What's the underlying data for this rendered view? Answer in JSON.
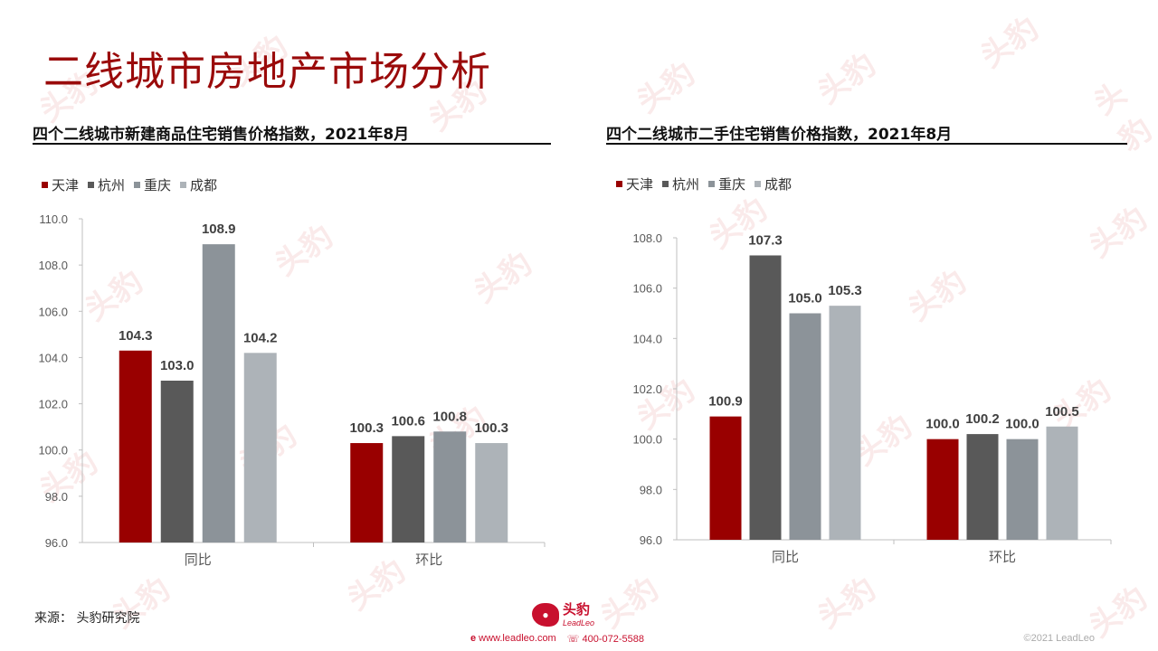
{
  "page": {
    "title": "二线城市房地产市场分析",
    "source": "来源：  头豹研究院",
    "logo_text": "头豹",
    "logo_sub": "LeadLeo",
    "website": "www.leadleo.com",
    "phone": "400-072-5588",
    "copyright": "©2021 LeadLeo",
    "watermark_text": "头豹"
  },
  "colors": {
    "天津": "#990000",
    "杭州": "#595959",
    "重庆": "#8c9399",
    "成都": "#adb3b8"
  },
  "legend": [
    "天津",
    "杭州",
    "重庆",
    "成都"
  ],
  "chart_data": [
    {
      "type": "bar",
      "title": "四个二线城市新建商品住宅销售价格指数，2021年8月",
      "categories": [
        "同比",
        "环比"
      ],
      "ylim": [
        96.0,
        110.0
      ],
      "yticks": [
        "96.0",
        "98.0",
        "100.0",
        "102.0",
        "104.0",
        "106.0",
        "108.0",
        "110.0"
      ],
      "legend_position": "top-left",
      "grid": false,
      "series": [
        {
          "name": "天津",
          "values": [
            104.3,
            100.3
          ],
          "labels": [
            "104.3",
            "100.3"
          ]
        },
        {
          "name": "杭州",
          "values": [
            103.0,
            100.6
          ],
          "labels": [
            "103.0",
            "100.6"
          ]
        },
        {
          "name": "重庆",
          "values": [
            108.9,
            100.8
          ],
          "labels": [
            "108.9",
            "100.8"
          ]
        },
        {
          "name": "成都",
          "values": [
            104.2,
            100.3
          ],
          "labels": [
            "104.2",
            "100.3"
          ]
        }
      ]
    },
    {
      "type": "bar",
      "title": "四个二线城市二手住宅销售价格指数，2021年8月",
      "categories": [
        "同比",
        "环比"
      ],
      "ylim": [
        96.0,
        108.0
      ],
      "yticks": [
        "96.0",
        "98.0",
        "100.0",
        "102.0",
        "104.0",
        "106.0",
        "108.0"
      ],
      "legend_position": "top-left",
      "grid": false,
      "series": [
        {
          "name": "天津",
          "values": [
            100.9,
            100.0
          ],
          "labels": [
            "100.9",
            "100.0"
          ]
        },
        {
          "name": "杭州",
          "values": [
            107.3,
            100.2
          ],
          "labels": [
            "107.3",
            "100.2"
          ]
        },
        {
          "name": "重庆",
          "values": [
            105.0,
            100.0
          ],
          "labels": [
            "105.0",
            "100.0"
          ]
        },
        {
          "name": "成都",
          "values": [
            105.3,
            100.5
          ],
          "labels": [
            "105.3",
            "100.5"
          ]
        }
      ]
    }
  ]
}
